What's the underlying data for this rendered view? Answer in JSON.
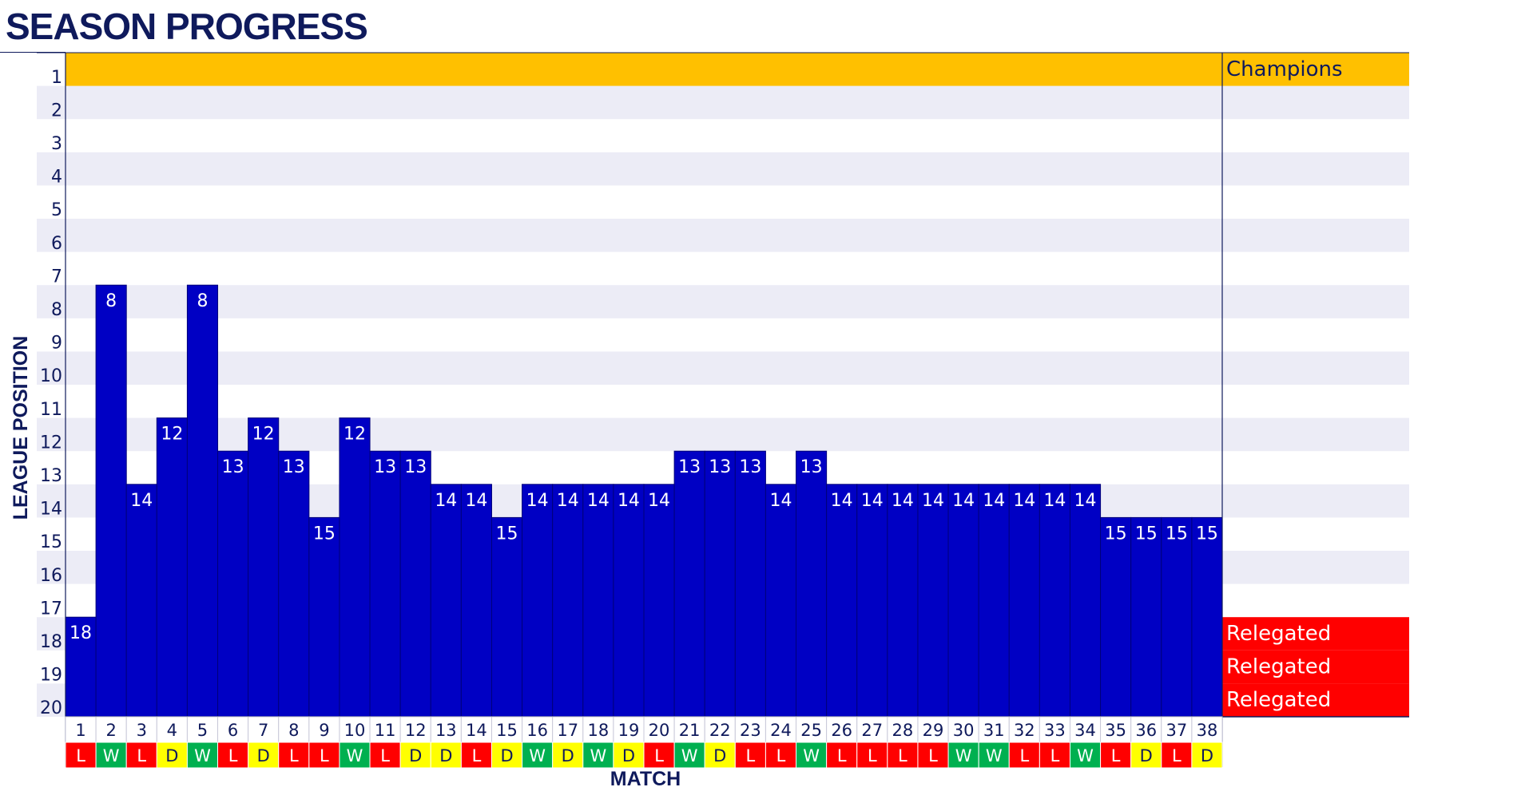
{
  "page": {
    "title": "SEASON PROGRESS"
  },
  "colors": {
    "navy": "#0f1a5c",
    "bar": "#0000c4",
    "stripe": "#ececf6",
    "champions": "#ffc000",
    "relegated": "#ff0000",
    "win": "#00b050",
    "draw": "#ffff00",
    "loss": "#ff0000"
  },
  "chart_data": {
    "type": "bar",
    "ylabel": "LEAGUE POSITION",
    "xlabel": "MATCH",
    "y_axis_inverted": true,
    "ylim": [
      1,
      20
    ],
    "y_ticks": [
      1,
      2,
      3,
      4,
      5,
      6,
      7,
      8,
      9,
      10,
      11,
      12,
      13,
      14,
      15,
      16,
      17,
      18,
      19,
      20
    ],
    "categories": [
      1,
      2,
      3,
      4,
      5,
      6,
      7,
      8,
      9,
      10,
      11,
      12,
      13,
      14,
      15,
      16,
      17,
      18,
      19,
      20,
      21,
      22,
      23,
      24,
      25,
      26,
      27,
      28,
      29,
      30,
      31,
      32,
      33,
      34,
      35,
      36,
      37,
      38
    ],
    "values": [
      18,
      8,
      14,
      12,
      8,
      13,
      12,
      13,
      15,
      12,
      13,
      13,
      14,
      14,
      15,
      14,
      14,
      14,
      14,
      14,
      13,
      13,
      13,
      14,
      13,
      14,
      14,
      14,
      14,
      14,
      14,
      14,
      14,
      14,
      15,
      15,
      15,
      15
    ],
    "results": [
      "L",
      "W",
      "L",
      "D",
      "W",
      "L",
      "D",
      "L",
      "L",
      "W",
      "L",
      "D",
      "D",
      "L",
      "D",
      "W",
      "D",
      "W",
      "D",
      "L",
      "W",
      "D",
      "L",
      "L",
      "W",
      "L",
      "L",
      "L",
      "L",
      "W",
      "W",
      "L",
      "L",
      "W",
      "L",
      "D",
      "L",
      "D"
    ],
    "zones": [
      {
        "positions": [
          1
        ],
        "label": "Champions"
      },
      {
        "positions": [
          18
        ],
        "label": "Relegated"
      },
      {
        "positions": [
          19
        ],
        "label": "Relegated"
      },
      {
        "positions": [
          20
        ],
        "label": "Relegated"
      }
    ],
    "grid": true
  }
}
